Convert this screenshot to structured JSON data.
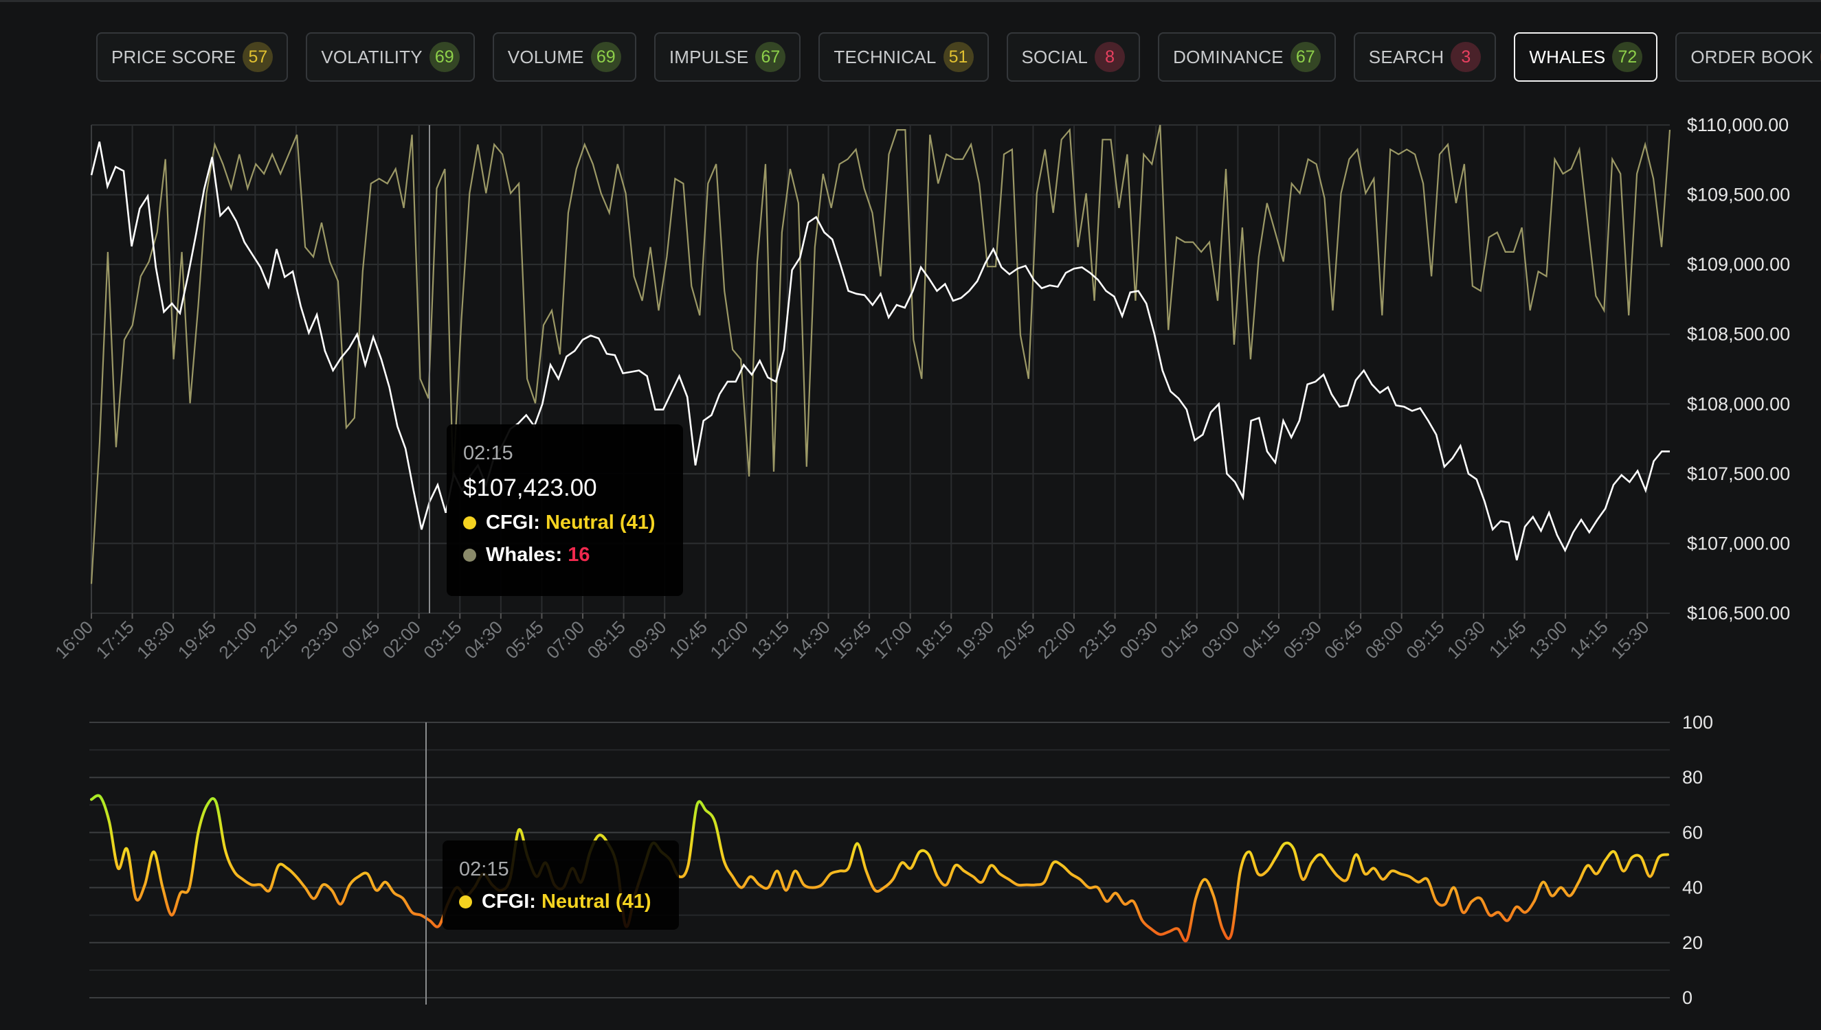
{
  "tabs": [
    {
      "label": "PRICE SCORE",
      "score": "57",
      "color": "#e0c030",
      "active": false
    },
    {
      "label": "VOLATILITY",
      "score": "69",
      "color": "#8ed04a",
      "active": false
    },
    {
      "label": "VOLUME",
      "score": "69",
      "color": "#8ed04a",
      "active": false
    },
    {
      "label": "IMPULSE",
      "score": "67",
      "color": "#8ed04a",
      "active": false
    },
    {
      "label": "TECHNICAL",
      "score": "51",
      "color": "#e0c030",
      "active": false
    },
    {
      "label": "SOCIAL",
      "score": "8",
      "color": "#e84060",
      "active": false
    },
    {
      "label": "DOMINANCE",
      "score": "67",
      "color": "#8ed04a",
      "active": false
    },
    {
      "label": "SEARCH",
      "score": "3",
      "color": "#e84060",
      "active": false
    },
    {
      "label": "WHALES",
      "score": "72",
      "color": "#8ed04a",
      "active": true
    },
    {
      "label": "ORDER BOOK",
      "score": "40",
      "color": "#f06a30",
      "active": false
    }
  ],
  "tooltip_main": {
    "time": "02:15",
    "price": "$107,423.00",
    "cfgi_label": "CFGI:",
    "cfgi_value": "Neutral (41)",
    "cfgi_color": "#f5d320",
    "whales_label": "Whales:",
    "whales_value": "16",
    "whales_color": "#f0294e",
    "whales_dot_color": "#8a8a6a"
  },
  "tooltip_sub": {
    "time": "02:15",
    "cfgi_label": "CFGI:",
    "cfgi_value": "Neutral (41)",
    "cfgi_color": "#f5d320"
  },
  "chart_data": [
    {
      "type": "line",
      "x_ticks": [
        "16:00",
        "17:15",
        "18:30",
        "19:45",
        "21:00",
        "22:15",
        "23:30",
        "00:45",
        "02:00",
        "03:15",
        "04:30",
        "05:45",
        "07:00",
        "08:15",
        "09:30",
        "10:45",
        "12:00",
        "13:15",
        "14:30",
        "15:45",
        "17:00",
        "18:15",
        "19:30",
        "20:45",
        "22:00",
        "23:15",
        "00:30",
        "01:45",
        "03:00",
        "04:15",
        "05:30",
        "06:45",
        "08:00",
        "09:15",
        "10:30",
        "11:45",
        "13:00",
        "14:15",
        "15:30"
      ],
      "y_ticks": [
        "$110,000.00",
        "$109,500.00",
        "$109,000.00",
        "$108,500.00",
        "$108,000.00",
        "$107,500.00",
        "$107,000.00",
        "$106,500.00"
      ],
      "ylim": [
        106500,
        110000
      ],
      "series": [
        {
          "color": "#ffffff",
          "values": [
            109640,
            109880,
            109560,
            109700,
            109670,
            109130,
            109400,
            109490,
            108980,
            108660,
            108720,
            108650,
            108920,
            109220,
            109540,
            109770,
            109350,
            109410,
            109310,
            109160,
            109070,
            108980,
            108840,
            109110,
            108910,
            108950,
            108700,
            108510,
            108640,
            108380,
            108240,
            108330,
            108400,
            108500,
            108280,
            108480,
            108320,
            108120,
            107840,
            107680,
            107380,
            107100,
            107300,
            107420,
            107220,
            107500,
            107380,
            107480,
            107560,
            107420,
            107620,
            107700,
            107820,
            107860,
            107920,
            107840,
            108000,
            108280,
            108180,
            108340,
            108380,
            108460,
            108490,
            108470,
            108360,
            108350,
            108220,
            108230,
            108240,
            108200,
            107960,
            107960,
            108080,
            108200,
            108050,
            107560,
            107880,
            107920,
            108070,
            108160,
            108160,
            108280,
            108210,
            108310,
            108190,
            108160,
            108390,
            108960,
            109050,
            109300,
            109340,
            109230,
            109180,
            109000,
            108810,
            108790,
            108780,
            108710,
            108790,
            108620,
            108710,
            108690,
            108810,
            108980,
            108900,
            108810,
            108860,
            108740,
            108760,
            108810,
            108880,
            109010,
            109110,
            108980,
            108930,
            108970,
            108990,
            108890,
            108830,
            108850,
            108840,
            108940,
            108970,
            108980,
            108940,
            108890,
            108810,
            108770,
            108630,
            108800,
            108810,
            108720,
            108500,
            108240,
            108090,
            108040,
            107960,
            107740,
            107780,
            107940,
            108000,
            107500,
            107440,
            107330,
            107880,
            107900,
            107660,
            107580,
            107880,
            107760,
            107880,
            108140,
            108160,
            108210,
            108070,
            107980,
            107990,
            108170,
            108240,
            108140,
            108080,
            108120,
            107990,
            107980,
            107950,
            107970,
            107880,
            107780,
            107550,
            107610,
            107700,
            107500,
            107460,
            107300,
            107100,
            107160,
            107150,
            106880,
            107120,
            107190,
            107090,
            107220,
            107060,
            106950,
            107080,
            107170,
            107080,
            107170,
            107250,
            107420,
            107490,
            107440,
            107520,
            107380,
            107590,
            107660,
            107660
          ]
        },
        {
          "color": "#9c9966",
          "values": [
            6,
            35,
            74,
            34,
            56,
            59,
            69,
            72,
            78,
            93,
            52,
            74,
            43,
            63,
            86,
            96,
            92,
            87,
            94,
            87,
            92,
            90,
            94,
            90,
            94,
            98,
            75,
            73,
            80,
            72,
            68,
            38,
            40,
            70,
            88,
            89,
            88,
            91,
            83,
            98,
            48,
            44,
            87,
            91,
            27,
            60,
            86,
            96,
            86,
            96,
            94,
            86,
            88,
            48,
            43,
            59,
            62,
            53,
            82,
            91,
            96,
            92,
            86,
            82,
            92,
            86,
            69,
            64,
            75,
            62,
            73,
            89,
            88,
            67,
            61,
            88,
            92,
            66,
            54,
            52,
            28,
            72,
            92,
            29,
            78,
            91,
            84,
            30,
            75,
            90,
            83,
            92,
            93,
            95,
            87,
            82,
            69,
            94,
            99,
            99,
            56,
            48,
            98,
            88,
            94,
            93,
            93,
            96,
            88,
            71,
            71,
            94,
            95,
            57,
            48,
            86,
            95,
            82,
            97,
            99,
            75,
            86,
            64,
            97,
            97,
            83,
            94,
            64,
            94,
            92,
            100,
            58,
            77,
            76,
            76,
            74,
            76,
            64,
            91,
            55,
            79,
            52,
            73,
            84,
            78,
            72,
            88,
            86,
            93,
            92,
            85,
            62,
            86,
            93,
            95,
            86,
            89,
            61,
            95,
            94,
            95,
            94,
            88,
            69,
            94,
            96,
            84,
            92,
            67,
            66,
            77,
            78,
            74,
            74,
            79,
            62,
            70,
            69,
            93,
            90,
            91,
            95,
            80,
            65,
            62,
            93,
            90,
            61,
            90,
            96,
            89,
            75,
            99
          ],
          "range": [
            0,
            100
          ]
        }
      ]
    },
    {
      "type": "line",
      "x_ticks": [],
      "y_ticks": [
        "100",
        "80",
        "60",
        "40",
        "20",
        "0"
      ],
      "ylim": [
        0,
        100
      ],
      "series": [
        {
          "name": "CFGI",
          "values": [
            72,
            73,
            64,
            47,
            54,
            36,
            41,
            53,
            40,
            30,
            38,
            40,
            60,
            70,
            71,
            54,
            46,
            43,
            41,
            41,
            39,
            48,
            47,
            44,
            40,
            36,
            41,
            39,
            34,
            41,
            44,
            45,
            39,
            42,
            38,
            36,
            31,
            30,
            28,
            26,
            34,
            40,
            37,
            40,
            45,
            41,
            39,
            43,
            61,
            51,
            44,
            49,
            41,
            40,
            47,
            42,
            53,
            59,
            56,
            48,
            26,
            37,
            47,
            56,
            53,
            50,
            44,
            48,
            70,
            68,
            64,
            50,
            44,
            40,
            44,
            41,
            40,
            46,
            39,
            46,
            41,
            40,
            41,
            45,
            46,
            47,
            56,
            46,
            39,
            40,
            43,
            49,
            47,
            53,
            52,
            44,
            41,
            48,
            46,
            44,
            42,
            48,
            45,
            43,
            41,
            41,
            41,
            42,
            49,
            48,
            45,
            43,
            40,
            40,
            35,
            38,
            34,
            35,
            28,
            25,
            23,
            24,
            25,
            21,
            36,
            43,
            37,
            25,
            23,
            46,
            53,
            45,
            46,
            51,
            56,
            54,
            43,
            49,
            52,
            48,
            44,
            43,
            52,
            45,
            47,
            43,
            46,
            45,
            44,
            42,
            43,
            35,
            34,
            40,
            31,
            35,
            36,
            30,
            31,
            28,
            33,
            31,
            35,
            42,
            37,
            40,
            37,
            42,
            48,
            45,
            50,
            53,
            46,
            51,
            51,
            44,
            51,
            52
          ]
        }
      ]
    }
  ]
}
